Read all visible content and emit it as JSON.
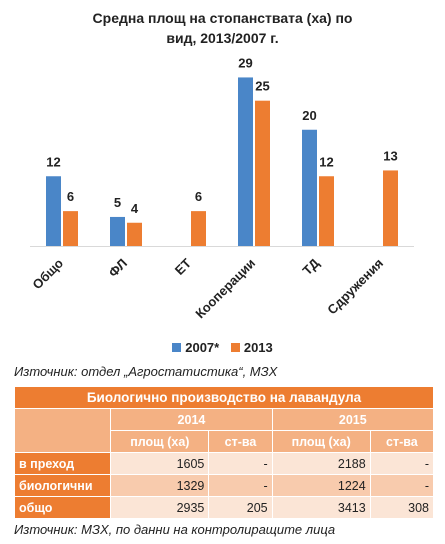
{
  "chart_data": {
    "type": "bar",
    "title": "Средна площ на стопанствата (ха) по вид, 2013/2007 г.",
    "title_line1": "Средна площ на стопанствата (ха) по",
    "title_line2": "вид, 2013/2007 г.",
    "categories": [
      "Общо",
      "ФЛ",
      "ЕТ",
      "Кооперации",
      "ТД",
      "Сдружения"
    ],
    "series": [
      {
        "name": "2007*",
        "color": "#4A86C8",
        "values": [
          12,
          5,
          null,
          29,
          20,
          null
        ]
      },
      {
        "name": "2013",
        "color": "#ED7D31",
        "values": [
          6,
          4,
          6,
          25,
          12,
          13
        ]
      }
    ],
    "ylim": [
      0,
      32
    ],
    "grid": false,
    "legend_position": "bottom"
  },
  "source_top": "Източник: отдел „Агростатистика“, МЗХ",
  "table": {
    "title": "Биологично производство на лавандула",
    "years": [
      "2014",
      "2015"
    ],
    "subheaders": [
      "площ (ха)",
      "ст-ва",
      "площ (ха)",
      "ст-ва"
    ],
    "rows": [
      {
        "label": "в преход",
        "cells": [
          "1605",
          "-",
          "2188",
          "-"
        ]
      },
      {
        "label": "биологични",
        "cells": [
          "1329",
          "-",
          "1224",
          "-"
        ]
      },
      {
        "label": "общо",
        "cells": [
          "2935",
          "205",
          "3413",
          "308"
        ]
      }
    ]
  },
  "source_bottom": "Източник: МЗХ, по данни на контролиращите лица"
}
